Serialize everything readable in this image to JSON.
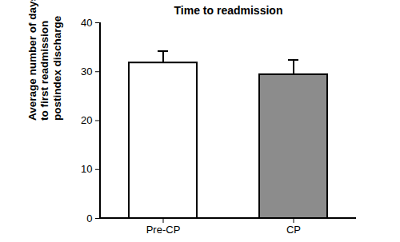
{
  "chart_data": {
    "type": "bar",
    "title": "Time to readmission",
    "categories": [
      "Pre-CP",
      "CP"
    ],
    "values": [
      31.8,
      29.4
    ],
    "errors": [
      2.4,
      3.0
    ],
    "colors": [
      "#ffffff",
      "#8c8c8c"
    ],
    "ylabel": "Average number of days\nto first readmission\npostindex discharge",
    "ylim": [
      0,
      40
    ],
    "yticks": [
      0,
      10,
      20,
      30,
      40
    ],
    "grid": false
  }
}
